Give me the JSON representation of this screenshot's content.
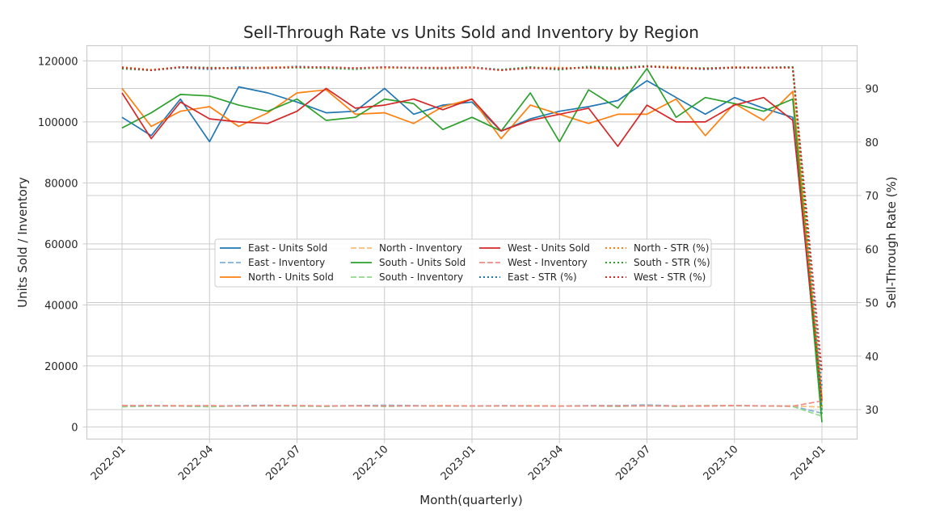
{
  "chart_data": {
    "type": "line",
    "title": "Sell-Through Rate vs Units Sold and Inventory by Region",
    "xlabel": "Month(quarterly)",
    "ylabel": "Units Sold / Inventory",
    "ylabel_right": "Sell-Through Rate (%)",
    "x_ticks": [
      "2022-01",
      "2022-04",
      "2022-07",
      "2022-10",
      "2023-01",
      "2023-04",
      "2023-07",
      "2023-10",
      "2024-01"
    ],
    "y_ticks": [
      "0",
      "20000",
      "40000",
      "60000",
      "80000",
      "100000",
      "120000"
    ],
    "y2_ticks": [
      "30",
      "40",
      "50",
      "60",
      "70",
      "80",
      "90"
    ],
    "ylim": [
      -4000,
      125000
    ],
    "y2lim": [
      24.5,
      98.0
    ],
    "grid": true,
    "legend_position": "center",
    "x": [
      "2022-01",
      "2022-02",
      "2022-03",
      "2022-04",
      "2022-05",
      "2022-06",
      "2022-07",
      "2022-08",
      "2022-09",
      "2022-10",
      "2022-11",
      "2022-12",
      "2023-01",
      "2023-02",
      "2023-03",
      "2023-04",
      "2023-05",
      "2023-06",
      "2023-07",
      "2023-08",
      "2023-09",
      "2023-10",
      "2023-11",
      "2023-12",
      "2024-01"
    ],
    "series": [
      {
        "name": "East - Units Sold",
        "axis": "left",
        "color": "#1f77b4",
        "dash": "solid",
        "values": [
          101500,
          95500,
          107500,
          93500,
          111500,
          109500,
          106500,
          103000,
          103500,
          111000,
          102500,
          105500,
          106500,
          97000,
          101000,
          103500,
          105000,
          107000,
          113500,
          108000,
          102500,
          108000,
          104500,
          101500,
          5500
        ]
      },
      {
        "name": "East - Inventory",
        "axis": "left",
        "color": "#7fb1d9",
        "dash": "dashed",
        "values": [
          6800,
          7000,
          6900,
          6800,
          7000,
          7100,
          6900,
          6900,
          7000,
          7100,
          7000,
          6900,
          6800,
          7000,
          6900,
          6900,
          7000,
          7000,
          7200,
          6900,
          7000,
          7000,
          6900,
          6800,
          4500
        ]
      },
      {
        "name": "North - Units Sold",
        "axis": "left",
        "color": "#ff7f0e",
        "dash": "solid",
        "values": [
          111000,
          98500,
          103500,
          105000,
          98500,
          103000,
          109500,
          110500,
          102500,
          103000,
          99500,
          105000,
          107500,
          94500,
          105500,
          102500,
          99500,
          102500,
          102500,
          107500,
          95500,
          106000,
          100500,
          110000,
          9500
        ]
      },
      {
        "name": "North - Inventory",
        "axis": "left",
        "color": "#f8bd7a",
        "dash": "dashed",
        "values": [
          7000,
          6900,
          7000,
          6900,
          6900,
          6900,
          7000,
          6800,
          6900,
          6800,
          6900,
          7000,
          6900,
          6900,
          7000,
          6900,
          6900,
          6800,
          6900,
          6900,
          7000,
          7000,
          6900,
          6900,
          6500
        ]
      },
      {
        "name": "South - Units Sold",
        "axis": "left",
        "color": "#2ca02c",
        "dash": "solid",
        "values": [
          98000,
          103000,
          109000,
          108500,
          105500,
          103500,
          107500,
          100500,
          101500,
          107500,
          106000,
          97500,
          101500,
          97000,
          109500,
          93500,
          110500,
          104500,
          117500,
          101500,
          108000,
          106000,
          103500,
          107500,
          1500
        ]
      },
      {
        "name": "South - Inventory",
        "axis": "left",
        "color": "#8fd98a",
        "dash": "dashed",
        "values": [
          6600,
          6800,
          6800,
          6600,
          6900,
          6900,
          6800,
          6700,
          7000,
          6700,
          6900,
          6800,
          6800,
          6900,
          6800,
          6800,
          6900,
          6700,
          7000,
          6700,
          6900,
          6900,
          6900,
          6700,
          3500
        ]
      },
      {
        "name": "West - Units Sold",
        "axis": "left",
        "color": "#d62728",
        "dash": "solid",
        "values": [
          109500,
          94500,
          106500,
          101000,
          100000,
          99500,
          103500,
          111000,
          104500,
          105500,
          107500,
          104000,
          107500,
          97000,
          100500,
          102500,
          104500,
          92000,
          105500,
          100000,
          100000,
          105500,
          108000,
          100500,
          8500
        ]
      },
      {
        "name": "West - Inventory",
        "axis": "left",
        "color": "#f08a84",
        "dash": "dashed",
        "values": [
          7000,
          7000,
          6900,
          7000,
          6800,
          7000,
          7000,
          6900,
          6900,
          6900,
          6900,
          6900,
          6900,
          6900,
          6900,
          6800,
          6900,
          6900,
          6900,
          6900,
          6800,
          7000,
          6900,
          6800,
          8500
        ]
      },
      {
        "name": "East - STR (%)",
        "axis": "right",
        "color": "#1f77b4",
        "dash": "dotted",
        "values": [
          93.8,
          93.4,
          93.9,
          93.6,
          94.0,
          93.8,
          94.1,
          93.9,
          93.7,
          93.9,
          93.8,
          93.9,
          94.0,
          93.5,
          93.9,
          93.6,
          94.0,
          93.8,
          94.1,
          93.9,
          93.6,
          93.9,
          93.9,
          94.0,
          34.0
        ]
      },
      {
        "name": "North - STR (%)",
        "axis": "right",
        "color": "#ff7f0e",
        "dash": "dotted",
        "values": [
          94.0,
          93.5,
          94.0,
          93.8,
          93.7,
          94.0,
          94.0,
          93.8,
          93.8,
          93.8,
          93.9,
          93.9,
          94.0,
          93.4,
          93.9,
          93.9,
          93.8,
          93.6,
          94.2,
          94.0,
          93.7,
          94.0,
          93.9,
          93.9,
          30.5
        ]
      },
      {
        "name": "South - STR (%)",
        "axis": "right",
        "color": "#2ca02c",
        "dash": "dotted",
        "values": [
          93.7,
          93.4,
          94.0,
          93.9,
          93.8,
          93.8,
          93.9,
          93.8,
          93.6,
          94.0,
          93.8,
          93.7,
          93.9,
          93.5,
          94.0,
          93.5,
          94.1,
          93.9,
          94.2,
          93.8,
          93.8,
          93.9,
          93.9,
          94.0,
          29.0
        ]
      },
      {
        "name": "West - STR (%)",
        "axis": "right",
        "color": "#d62728",
        "dash": "dotted",
        "values": [
          93.9,
          93.4,
          94.0,
          93.8,
          93.8,
          93.8,
          94.0,
          94.0,
          93.8,
          94.0,
          93.9,
          93.8,
          93.9,
          93.4,
          93.8,
          93.7,
          93.9,
          93.7,
          94.1,
          93.8,
          93.7,
          93.9,
          93.9,
          93.9,
          37.0
        ]
      }
    ]
  }
}
